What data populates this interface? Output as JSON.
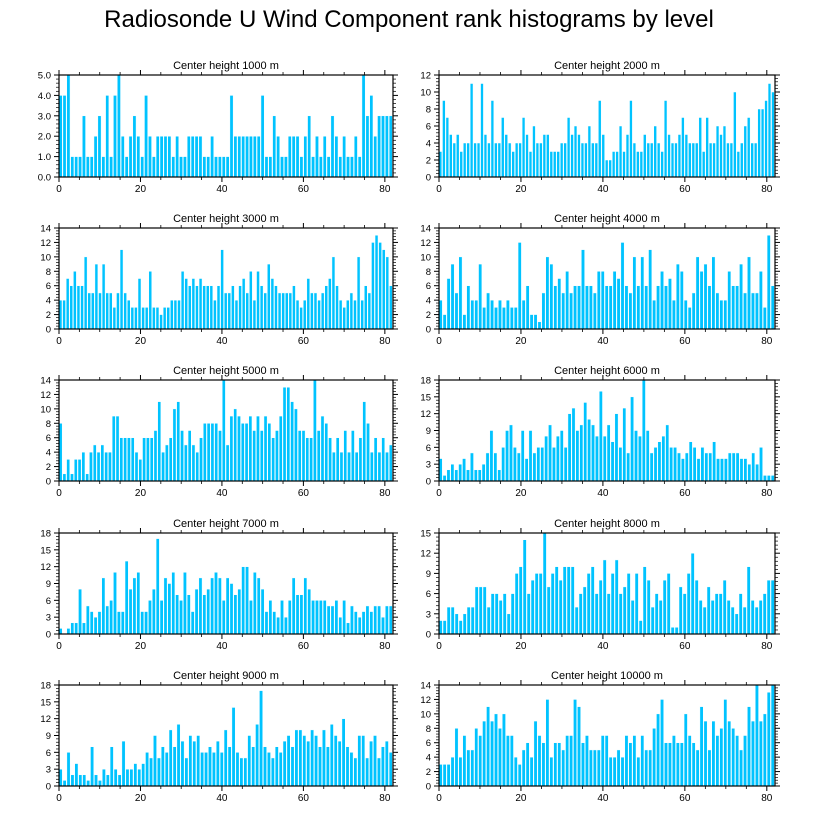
{
  "page": {
    "title": "Radiosonde U Wind Component rank histograms by level"
  },
  "colors": {
    "bar": "#00c3ff",
    "bar_edge": "#ffffff",
    "axis": "#000000"
  },
  "chart_data": [
    {
      "type": "bar",
      "title": "Center height 1000 m",
      "xlim": [
        0,
        82
      ],
      "ylim": [
        0,
        5
      ],
      "xticks": [
        0,
        20,
        40,
        60,
        80
      ],
      "yticks": [
        0,
        1,
        2,
        3,
        4,
        5
      ],
      "ytick_labels": [
        "0.0",
        "1.0",
        "2.0",
        "3.0",
        "4.0",
        "5.0"
      ],
      "values": [
        4,
        4,
        5,
        1,
        1,
        1,
        3,
        1,
        1,
        2,
        3,
        1,
        4,
        1,
        4,
        5,
        2,
        1,
        2,
        3,
        2,
        1,
        4,
        2,
        1,
        2,
        2,
        2,
        2,
        1,
        2,
        1,
        1,
        2,
        2,
        2,
        2,
        1,
        1,
        2,
        1,
        1,
        1,
        1,
        4,
        2,
        2,
        2,
        2,
        2,
        2,
        2,
        4,
        1,
        1,
        3,
        2,
        1,
        1,
        2,
        2,
        2,
        1,
        2,
        3,
        1,
        2,
        1,
        2,
        1,
        3,
        2,
        1,
        2,
        1,
        1,
        2,
        1,
        5,
        3,
        4,
        2,
        3,
        3,
        3,
        3
      ]
    },
    {
      "type": "bar",
      "title": "Center height 2000 m",
      "xlim": [
        0,
        82
      ],
      "ylim": [
        0,
        12
      ],
      "xticks": [
        0,
        20,
        40,
        60,
        80
      ],
      "yticks": [
        0,
        2,
        4,
        6,
        8,
        10,
        12
      ],
      "ytick_labels": [
        "0",
        "2",
        "4",
        "6",
        "8",
        "10",
        "12"
      ],
      "values": [
        3,
        9,
        7,
        5,
        4,
        5,
        3,
        4,
        4,
        11,
        4,
        4,
        11,
        5,
        4,
        9,
        4,
        4,
        7,
        5,
        4,
        3,
        4,
        4,
        7,
        5,
        3,
        6,
        4,
        4,
        5,
        5,
        3,
        3,
        3,
        4,
        4,
        7,
        5,
        6,
        5,
        4,
        4,
        6,
        4,
        4,
        9,
        5,
        2,
        2,
        3,
        3,
        6,
        3,
        5,
        9,
        4,
        3,
        3,
        5,
        4,
        4,
        6,
        4,
        3,
        9,
        5,
        4,
        4,
        5,
        7,
        5,
        4,
        4,
        4,
        7,
        3,
        7,
        4,
        4,
        6,
        5,
        6,
        4,
        4,
        10,
        3,
        4,
        6,
        7,
        4,
        4,
        8,
        8,
        9,
        11,
        10
      ]
    },
    {
      "type": "bar",
      "title": "Center height 3000 m",
      "xlim": [
        0,
        82
      ],
      "ylim": [
        0,
        14
      ],
      "xticks": [
        0,
        20,
        40,
        60,
        80
      ],
      "yticks": [
        0,
        2,
        4,
        6,
        8,
        10,
        12,
        14
      ],
      "ytick_labels": [
        "0",
        "2",
        "4",
        "6",
        "8",
        "10",
        "12",
        "14"
      ],
      "values": [
        4,
        4,
        7,
        6,
        8,
        6,
        6,
        10,
        5,
        5,
        9,
        5,
        9,
        5,
        5,
        3,
        5,
        11,
        5,
        4,
        3,
        3,
        7,
        3,
        3,
        8,
        3,
        3,
        2,
        3,
        3,
        4,
        4,
        4,
        8,
        7,
        6,
        7,
        6,
        7,
        6,
        6,
        6,
        4,
        6,
        11,
        5,
        5,
        6,
        4,
        6,
        7,
        5,
        8,
        4,
        8,
        6,
        5,
        9,
        7,
        6,
        5,
        5,
        5,
        5,
        6,
        4,
        3,
        4,
        7,
        5,
        5,
        4,
        5,
        6,
        7,
        10,
        6,
        4,
        3,
        4,
        5,
        4,
        10,
        4,
        6,
        5,
        12,
        13,
        12,
        11,
        10,
        6
      ]
    },
    {
      "type": "bar",
      "title": "Center height 4000 m",
      "xlim": [
        0,
        82
      ],
      "ylim": [
        0,
        14
      ],
      "xticks": [
        0,
        20,
        40,
        60,
        80
      ],
      "yticks": [
        0,
        2,
        4,
        6,
        8,
        10,
        12,
        14
      ],
      "ytick_labels": [
        "0",
        "2",
        "4",
        "6",
        "8",
        "10",
        "12",
        "14"
      ],
      "values": [
        4,
        2,
        7,
        9,
        5,
        10,
        2,
        6,
        4,
        4,
        9,
        3,
        5,
        4,
        3,
        4,
        3,
        4,
        3,
        3,
        12,
        4,
        6,
        2,
        2,
        1,
        5,
        10,
        9,
        6,
        7,
        5,
        8,
        5,
        6,
        6,
        11,
        6,
        6,
        5,
        8,
        8,
        6,
        6,
        8,
        7,
        12,
        6,
        5,
        10,
        6,
        10,
        6,
        11,
        4,
        6,
        8,
        6,
        7,
        4,
        9,
        8,
        4,
        3,
        5,
        10,
        8,
        9,
        6,
        10,
        5,
        4,
        4,
        8,
        6,
        6,
        9,
        5,
        10,
        5,
        5,
        8,
        3,
        13,
        6
      ]
    },
    {
      "type": "bar",
      "title": "Center height 5000 m",
      "xlim": [
        0,
        82
      ],
      "ylim": [
        0,
        14
      ],
      "xticks": [
        0,
        20,
        40,
        60,
        80
      ],
      "yticks": [
        0,
        2,
        4,
        6,
        8,
        10,
        12,
        14
      ],
      "ytick_labels": [
        "0",
        "2",
        "4",
        "6",
        "8",
        "10",
        "12",
        "14"
      ],
      "values": [
        8,
        1,
        3,
        1,
        3,
        3,
        4,
        1,
        4,
        5,
        4,
        5,
        4,
        4,
        9,
        9,
        6,
        6,
        6,
        6,
        4,
        3,
        6,
        6,
        6,
        7,
        11,
        4,
        5,
        6,
        10,
        11,
        7,
        5,
        7,
        5,
        4,
        6,
        8,
        8,
        8,
        8,
        7,
        14,
        5,
        9,
        10,
        9,
        8,
        8,
        9,
        7,
        9,
        7,
        9,
        8,
        6,
        7,
        9,
        13,
        13,
        11,
        10,
        7,
        7,
        6,
        6,
        14,
        7,
        9,
        8,
        6,
        4,
        6,
        4,
        7,
        4,
        7,
        4,
        6,
        11,
        8,
        4,
        6,
        4,
        6,
        4,
        5
      ]
    },
    {
      "type": "bar",
      "title": "Center height 6000 m",
      "xlim": [
        0,
        82
      ],
      "ylim": [
        0,
        18
      ],
      "xticks": [
        0,
        20,
        40,
        60,
        80
      ],
      "yticks": [
        0,
        3,
        6,
        9,
        12,
        15,
        18
      ],
      "ytick_labels": [
        "0",
        "3",
        "6",
        "9",
        "12",
        "15",
        "18"
      ],
      "values": [
        4,
        1,
        2,
        3,
        2,
        3,
        4,
        2,
        5,
        2,
        2,
        3,
        5,
        9,
        5,
        2,
        6,
        9,
        10,
        6,
        5,
        9,
        4,
        9,
        5,
        6,
        6,
        8,
        10,
        6,
        8,
        9,
        6,
        12,
        13,
        9,
        10,
        14,
        11,
        10,
        8,
        16,
        8,
        10,
        7,
        12,
        6,
        13,
        5,
        15,
        9,
        8,
        18,
        9,
        5,
        6,
        7,
        8,
        10,
        6,
        6,
        5,
        4,
        5,
        7,
        6,
        4,
        6,
        5,
        5,
        7,
        4,
        4,
        4,
        5,
        5,
        5,
        4,
        4,
        3,
        5,
        3,
        6,
        1,
        1,
        1
      ]
    },
    {
      "type": "bar",
      "title": "Center height 7000 m",
      "xlim": [
        0,
        82
      ],
      "ylim": [
        0,
        18
      ],
      "xticks": [
        0,
        20,
        40,
        60,
        80
      ],
      "yticks": [
        0,
        3,
        6,
        9,
        12,
        15,
        18
      ],
      "ytick_labels": [
        "0",
        "3",
        "6",
        "9",
        "12",
        "15",
        "18"
      ],
      "values": [
        1,
        0,
        1,
        2,
        2,
        8,
        2,
        5,
        4,
        3,
        4,
        10,
        5,
        6,
        11,
        4,
        4,
        13,
        8,
        10,
        11,
        4,
        4,
        6,
        8,
        17,
        6,
        10,
        9,
        11,
        7,
        6,
        11,
        7,
        4,
        8,
        10,
        7,
        8,
        10,
        11,
        10,
        6,
        10,
        9,
        7,
        8,
        12,
        12,
        6,
        11,
        10,
        8,
        4,
        6,
        4,
        3,
        6,
        3,
        6,
        10,
        7,
        7,
        10,
        8,
        6,
        6,
        6,
        6,
        5,
        5,
        6,
        3,
        6,
        2,
        5,
        4,
        3,
        4,
        5,
        4,
        5,
        5,
        3,
        5,
        5
      ]
    },
    {
      "type": "bar",
      "title": "Center height 8000 m",
      "xlim": [
        0,
        82
      ],
      "ylim": [
        0,
        15
      ],
      "xticks": [
        0,
        20,
        40,
        60,
        80
      ],
      "yticks": [
        0,
        3,
        6,
        9,
        12,
        15
      ],
      "ytick_labels": [
        "0",
        "3",
        "6",
        "9",
        "12",
        "15"
      ],
      "values": [
        2,
        2,
        4,
        4,
        3,
        2,
        3,
        4,
        4,
        7,
        7,
        7,
        4,
        6,
        6,
        5,
        6,
        3,
        6,
        9,
        10,
        14,
        6,
        8,
        9,
        9,
        15,
        7,
        9,
        10,
        8,
        10,
        10,
        10,
        4,
        6,
        7,
        9,
        10,
        6,
        8,
        11,
        6,
        9,
        11,
        6,
        7,
        9,
        5,
        9,
        2,
        10,
        8,
        4,
        6,
        5,
        8,
        9,
        1,
        1,
        7,
        6,
        9,
        12,
        8,
        5,
        4,
        7,
        5,
        6,
        6,
        8,
        5,
        4,
        3,
        6,
        4,
        10,
        5,
        4,
        5,
        6,
        8,
        8
      ]
    },
    {
      "type": "bar",
      "title": "Center height 9000 m",
      "xlim": [
        0,
        82
      ],
      "ylim": [
        0,
        18
      ],
      "xticks": [
        0,
        20,
        40,
        60,
        80
      ],
      "yticks": [
        0,
        3,
        6,
        9,
        12,
        15,
        18
      ],
      "ytick_labels": [
        "0",
        "3",
        "6",
        "9",
        "12",
        "15",
        "18"
      ],
      "values": [
        3,
        1,
        6,
        2,
        4,
        2,
        2,
        1,
        7,
        2,
        1,
        3,
        2,
        7,
        3,
        2,
        8,
        3,
        3,
        4,
        3,
        4,
        6,
        5,
        9,
        5,
        7,
        6,
        10,
        7,
        11,
        8,
        5,
        9,
        8,
        9,
        6,
        6,
        7,
        6,
        8,
        6,
        10,
        7,
        14,
        6,
        5,
        5,
        9,
        7,
        11,
        17,
        7,
        6,
        5,
        7,
        6,
        8,
        9,
        7,
        10,
        10,
        9,
        8,
        10,
        9,
        7,
        10,
        7,
        11,
        9,
        8,
        12,
        7,
        6,
        5,
        9,
        9,
        5,
        8,
        9,
        5,
        7,
        8,
        6
      ]
    },
    {
      "type": "bar",
      "title": "Center height 10000 m",
      "xlim": [
        0,
        82
      ],
      "ylim": [
        0,
        14
      ],
      "xticks": [
        0,
        20,
        40,
        60,
        80
      ],
      "yticks": [
        0,
        2,
        4,
        6,
        8,
        10,
        12,
        14
      ],
      "ytick_labels": [
        "0",
        "2",
        "4",
        "6",
        "8",
        "10",
        "12",
        "14"
      ],
      "values": [
        3,
        3,
        3,
        4,
        8,
        4,
        7,
        5,
        5,
        8,
        7,
        9,
        11,
        9,
        10,
        8,
        10,
        7,
        7,
        4,
        3,
        5,
        6,
        4,
        9,
        7,
        6,
        12,
        4,
        6,
        6,
        5,
        7,
        7,
        12,
        11,
        6,
        7,
        5,
        5,
        5,
        7,
        7,
        4,
        4,
        5,
        4,
        7,
        6,
        7,
        4,
        7,
        5,
        5,
        8,
        10,
        12,
        6,
        6,
        7,
        6,
        6,
        10,
        7,
        6,
        5,
        11,
        9,
        5,
        9,
        7,
        8,
        12,
        9,
        8,
        7,
        5,
        7,
        11,
        9,
        14,
        9,
        10,
        13,
        14
      ]
    }
  ]
}
